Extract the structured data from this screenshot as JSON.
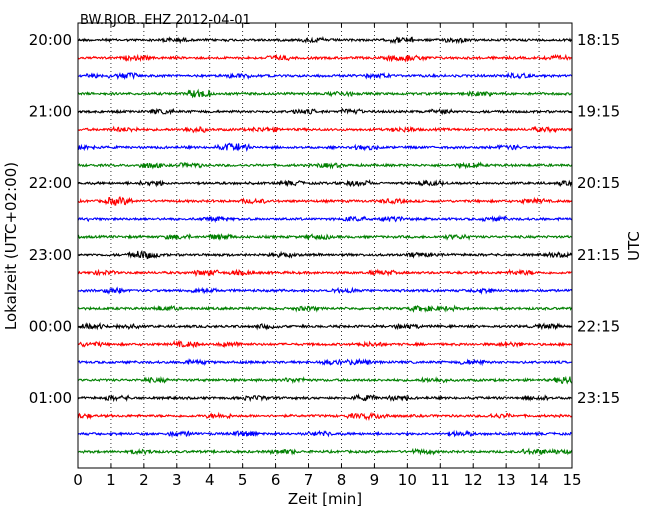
{
  "chart_data": {
    "type": "line",
    "title": "BW.RJOB..EHZ 2012-04-01",
    "xlabel": "Zeit  [min]",
    "ylabel_left": "Lokalzeit (UTC+02:00)",
    "ylabel_right": "UTC",
    "xlim": [
      0,
      15
    ],
    "xticks": [
      "0",
      "1",
      "2",
      "3",
      "4",
      "5",
      "6",
      "7",
      "8",
      "9",
      "10",
      "11",
      "12",
      "13",
      "14",
      "15"
    ],
    "grid": "vertical dotted at each minute",
    "trace_count": 24,
    "trace_interval_min": 15,
    "color_cycle": [
      "#000000",
      "#ff0000",
      "#0000ff",
      "#008000"
    ],
    "left_time_labels": [
      {
        "trace": 0,
        "label": "20:00"
      },
      {
        "trace": 4,
        "label": "21:00"
      },
      {
        "trace": 8,
        "label": "22:00"
      },
      {
        "trace": 12,
        "label": "23:00"
      },
      {
        "trace": 16,
        "label": "00:00"
      },
      {
        "trace": 20,
        "label": "01:00"
      }
    ],
    "right_time_labels": [
      {
        "trace": 0,
        "label": "18:15"
      },
      {
        "trace": 4,
        "label": "19:15"
      },
      {
        "trace": 8,
        "label": "20:15"
      },
      {
        "trace": 12,
        "label": "21:15"
      },
      {
        "trace": 16,
        "label": "22:15"
      },
      {
        "trace": 20,
        "label": "23:15"
      }
    ]
  }
}
